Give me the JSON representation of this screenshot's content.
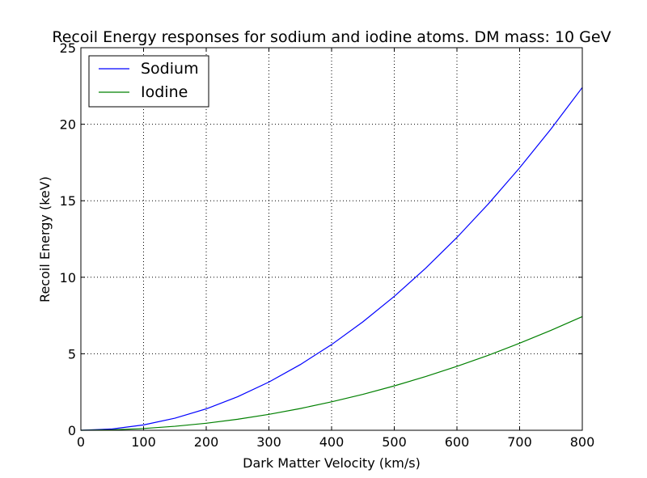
{
  "chart_data": {
    "type": "line",
    "title": "Recoil Energy responses for sodium and iodine atoms. DM mass: 10 GeV",
    "xlabel": "Dark Matter Velocity (km/s)",
    "ylabel": "Recoil Energy (keV)",
    "xlim": [
      0,
      800
    ],
    "ylim": [
      0,
      25
    ],
    "xticks": [
      0,
      100,
      200,
      300,
      400,
      500,
      600,
      700,
      800
    ],
    "yticks": [
      0,
      5,
      10,
      15,
      20,
      25
    ],
    "grid": true,
    "legend_position": "top-left",
    "x": [
      0,
      50,
      100,
      150,
      200,
      250,
      300,
      350,
      400,
      450,
      500,
      550,
      600,
      650,
      700,
      750,
      800
    ],
    "series": [
      {
        "name": "Sodium",
        "color": "#0000ff",
        "values": [
          0,
          0.087,
          0.35,
          0.79,
          1.4,
          2.19,
          3.15,
          4.29,
          5.6,
          7.09,
          8.75,
          10.59,
          12.6,
          14.79,
          17.15,
          19.69,
          22.4
        ]
      },
      {
        "name": "Iodine",
        "color": "#008000",
        "values": [
          0,
          0.029,
          0.116,
          0.26,
          0.46,
          0.72,
          1.04,
          1.42,
          1.86,
          2.35,
          2.9,
          3.51,
          4.18,
          4.9,
          5.69,
          6.53,
          7.43
        ]
      }
    ]
  }
}
